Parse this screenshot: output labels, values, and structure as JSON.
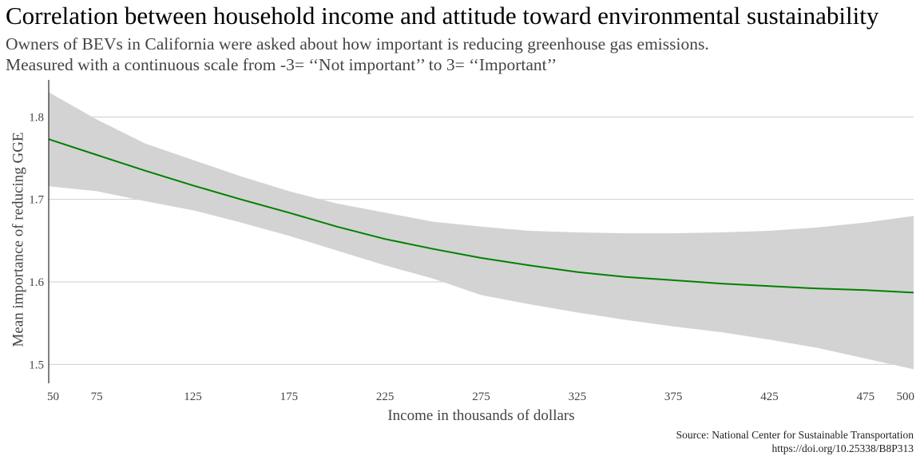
{
  "chart_data": {
    "type": "line",
    "title": "Correlation between household income and attitude toward environmental sustainability",
    "subtitle": [
      "Owners of BEVs in California were asked about how important is reducing greenhouse gas emissions.",
      "Measured with a continuous scale from -3= ‘‘Not important’’ to 3= ‘‘Important’’"
    ],
    "xlabel": "Income in thousands of dollars",
    "ylabel": "Mean importance of reducing GGE",
    "caption": [
      "Source: National Center for Sustainable Transportation",
      "https://doi.org/10.25338/B8P313"
    ],
    "xlim": [
      50,
      500
    ],
    "ylim": [
      1.477,
      1.845
    ],
    "x_ticks": [
      50,
      75,
      125,
      175,
      225,
      275,
      325,
      375,
      425,
      475,
      500
    ],
    "y_ticks": [
      1.5,
      1.6,
      1.7,
      1.8
    ],
    "y_tick_labels": [
      "1.5",
      "1.6",
      "1.7",
      "1.8"
    ],
    "grid": "horizontal-major",
    "colors": {
      "line": "#008000",
      "ribbon": "#d3d3d3",
      "grid": "#bdbdbd"
    },
    "series": [
      {
        "x": [
          50,
          75,
          100,
          125,
          150,
          175,
          200,
          225,
          250,
          275,
          300,
          325,
          350,
          375,
          400,
          425,
          450,
          475,
          500
        ],
        "y": [
          1.773,
          1.754,
          1.735,
          1.717,
          1.7,
          1.684,
          1.667,
          1.652,
          1.64,
          1.629,
          1.62,
          1.612,
          1.606,
          1.602,
          1.598,
          1.595,
          1.592,
          1.59,
          1.587
        ],
        "lower": [
          1.716,
          1.71,
          1.698,
          1.687,
          1.672,
          1.656,
          1.638,
          1.62,
          1.604,
          1.584,
          1.573,
          1.563,
          1.554,
          1.546,
          1.539,
          1.53,
          1.52,
          1.507,
          1.494
        ],
        "upper": [
          1.83,
          1.797,
          1.768,
          1.748,
          1.728,
          1.71,
          1.695,
          1.684,
          1.673,
          1.667,
          1.662,
          1.66,
          1.659,
          1.659,
          1.66,
          1.662,
          1.666,
          1.672,
          1.68
        ]
      }
    ]
  }
}
